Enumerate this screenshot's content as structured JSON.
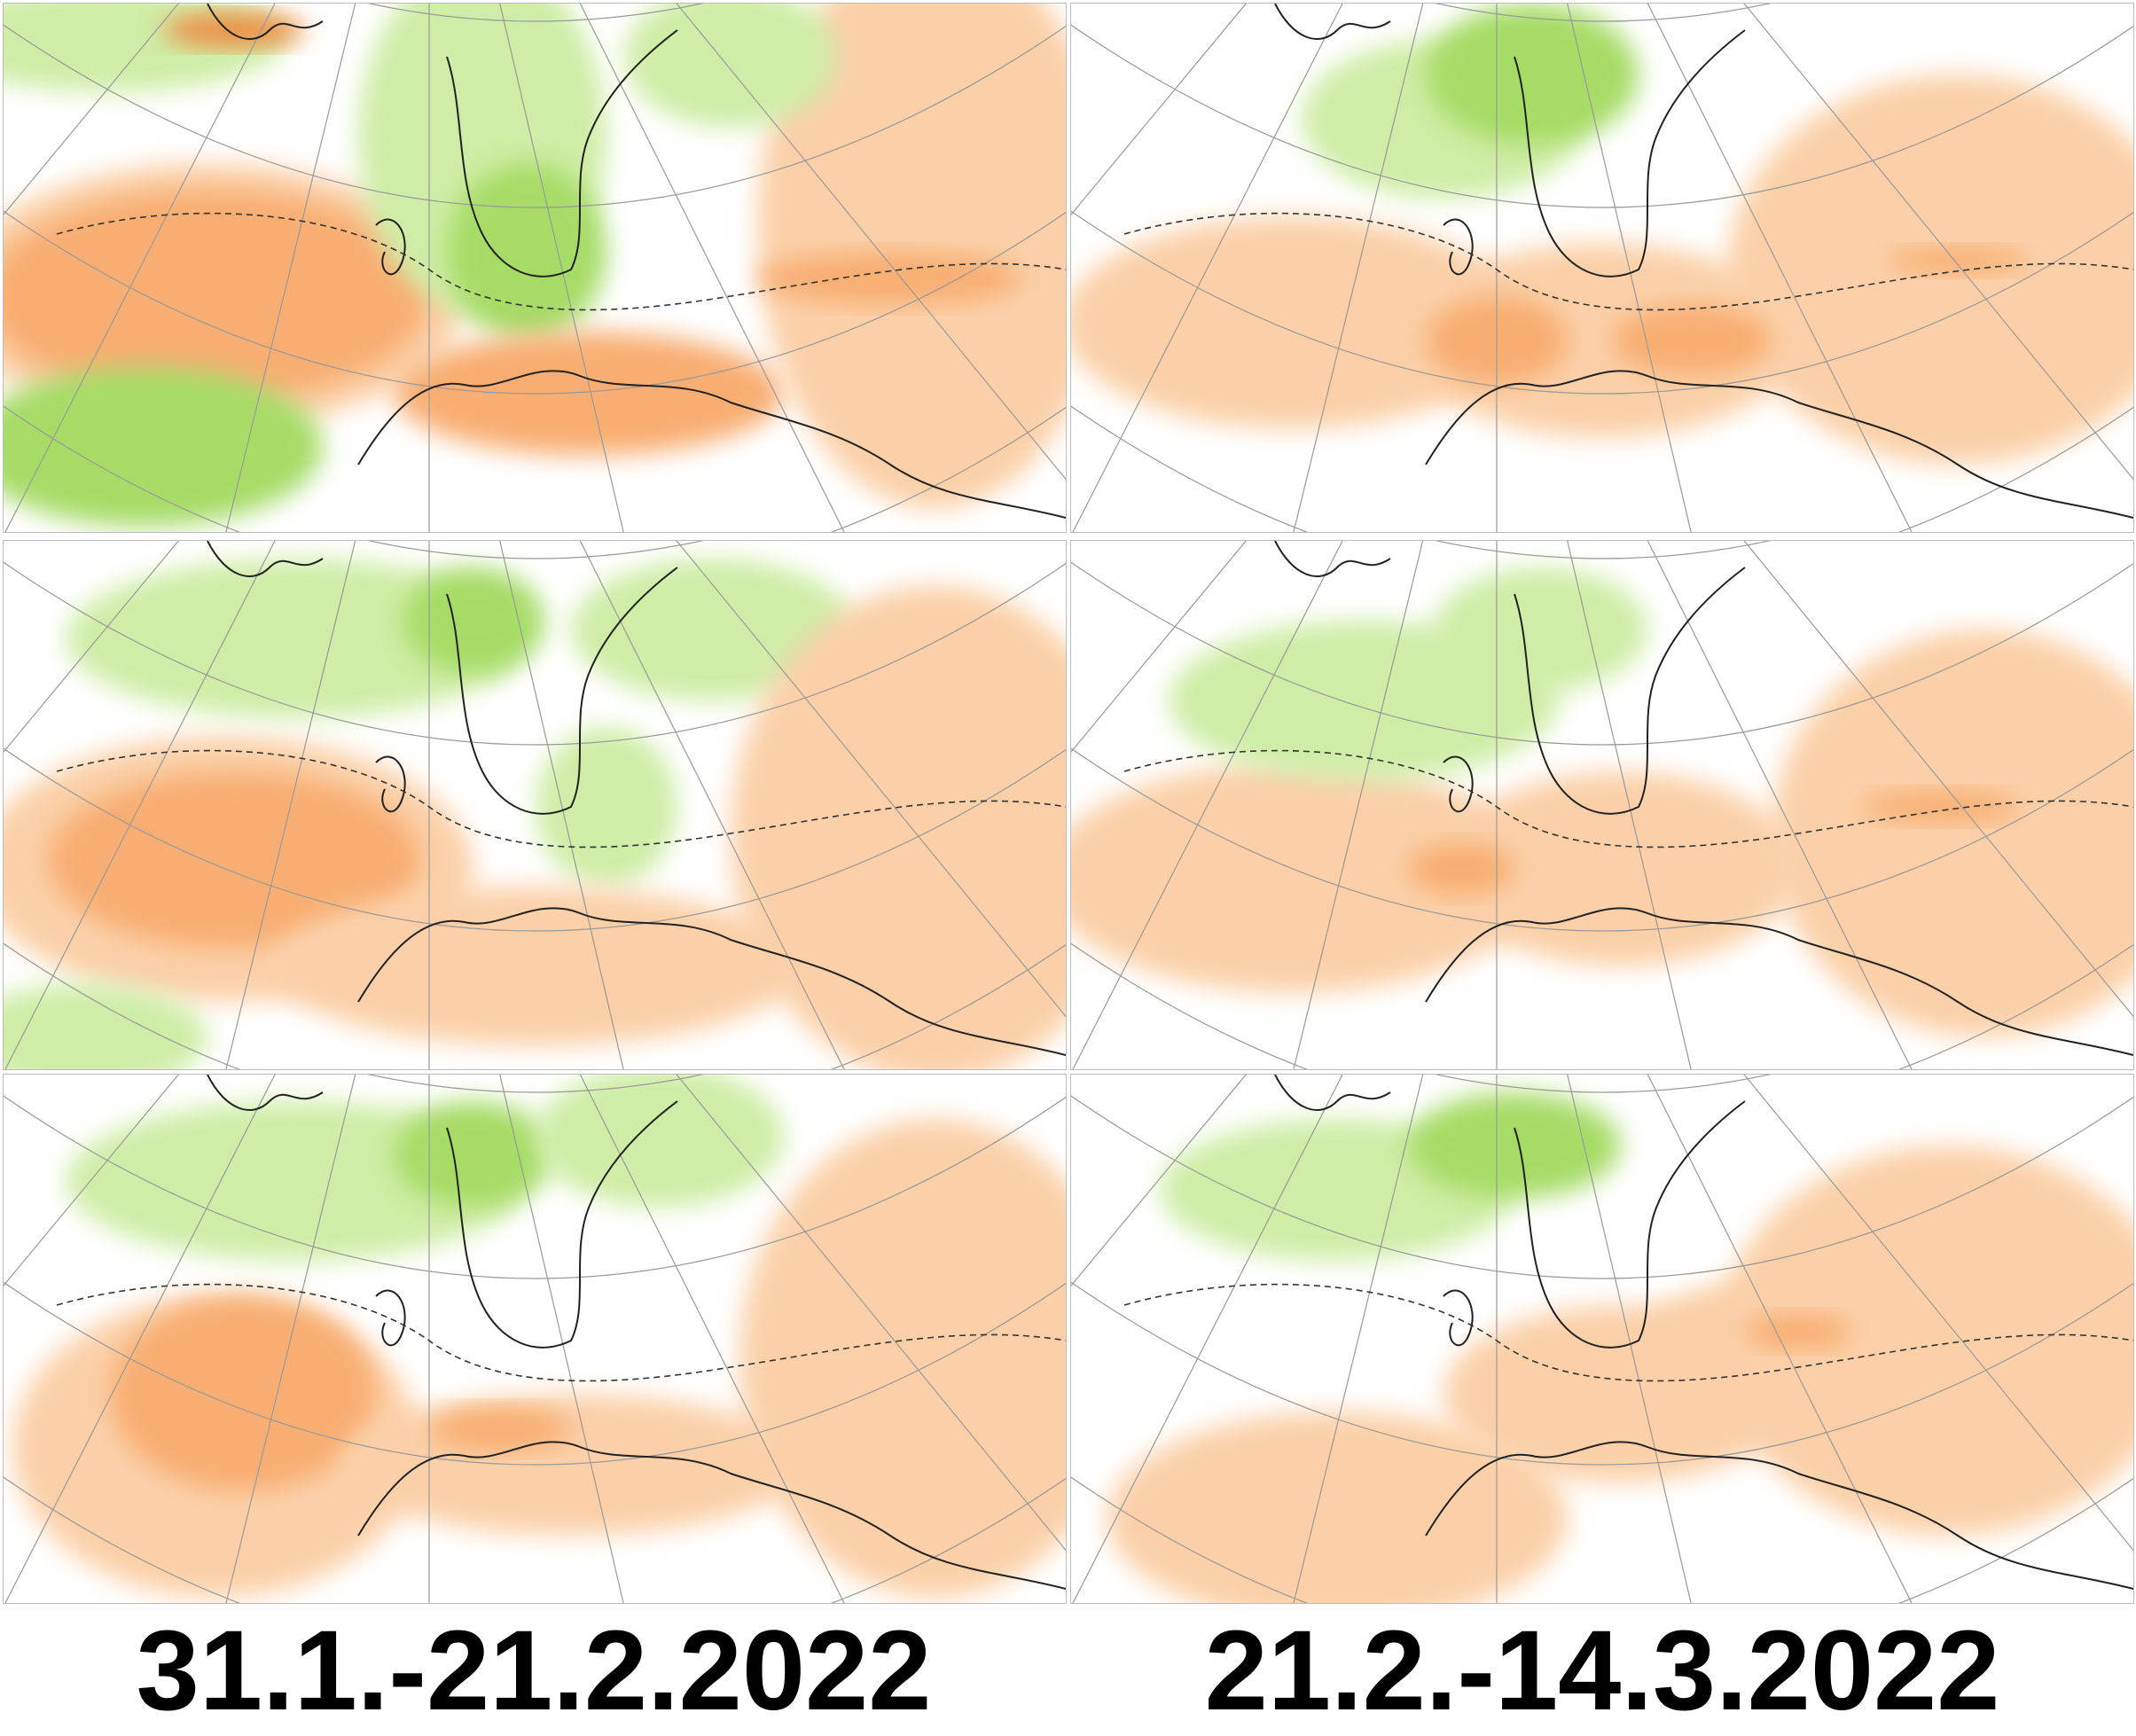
{
  "captions": [
    "31.1.-21.2.2022",
    "21.2.-14.3.2022"
  ]
}
